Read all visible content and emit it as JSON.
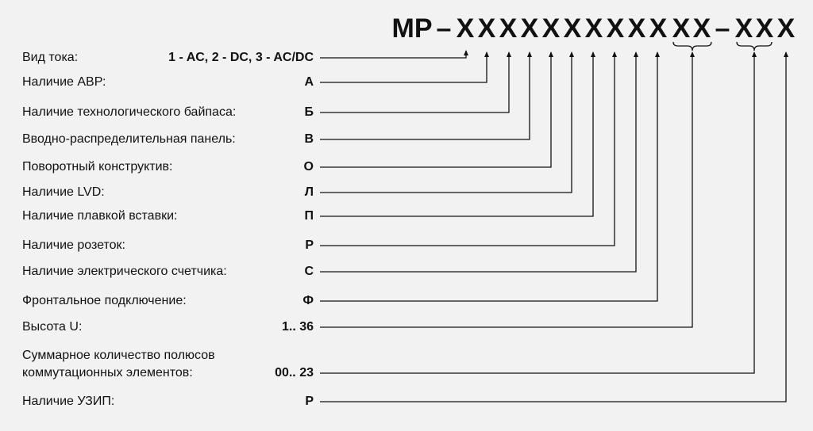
{
  "code": {
    "prefix": "MP",
    "dash1": "–",
    "letters_main": [
      "X",
      "X",
      "X",
      "X",
      "X",
      "X",
      "X",
      "X",
      "X",
      "X",
      "X",
      "X"
    ],
    "dash2": "–",
    "letters_suffix": [
      "X",
      "X",
      "X"
    ]
  },
  "rows": [
    {
      "label": "Вид тока:",
      "value": "1 - AC, 2 - DC, 3 - AC/DC"
    },
    {
      "label": "Наличие АВР:",
      "value": "А"
    },
    {
      "label": "Наличие технологического байпаса:",
      "value": "Б"
    },
    {
      "label": "Вводно-распределительная панель:",
      "value": "В"
    },
    {
      "label": "Поворотный конструктив:",
      "value": "О"
    },
    {
      "label": "Наличие LVD:",
      "value": "Л"
    },
    {
      "label": "Наличие плавкой вставки:",
      "value": "П"
    },
    {
      "label": "Наличие розеток:",
      "value": "Р"
    },
    {
      "label": "Наличие электрического счетчика:",
      "value": "С"
    },
    {
      "label": "Фронтальное подключение:",
      "value": "Ф"
    },
    {
      "label": "Высота U:",
      "value": "1.. 36"
    },
    {
      "label": "Суммарное количество полюсов коммутационных элементов:",
      "label_line1": "Суммарное количество полюсов",
      "label_line2": "коммутационных элементов:",
      "value": "00.. 23"
    },
    {
      "label": "Наличие УЗИП:",
      "value": "Р"
    }
  ],
  "colors": {
    "background": "#f2f2f2",
    "ink": "#111111"
  }
}
